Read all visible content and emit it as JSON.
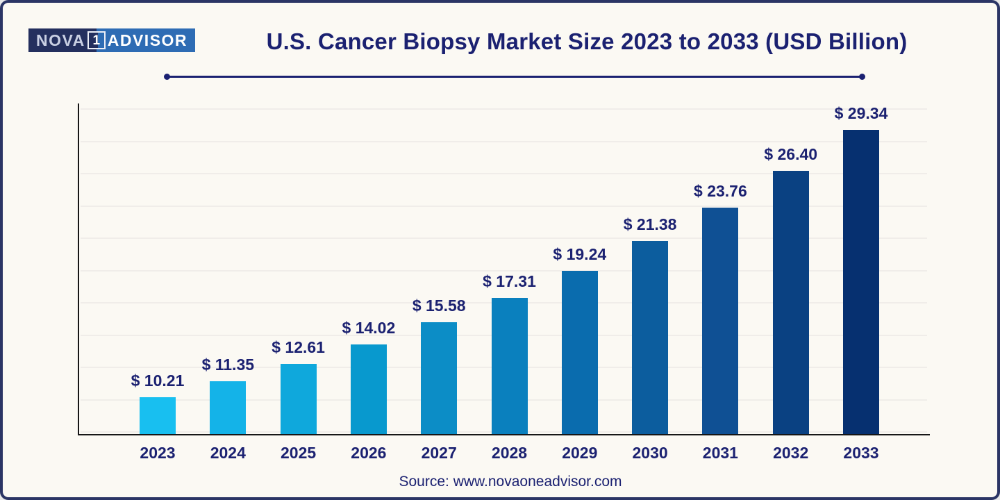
{
  "logo": {
    "nova": "NOVA",
    "one": "1",
    "advisor": "ADVISOR"
  },
  "header": {
    "title": "U.S. Cancer Biopsy Market Size 2023 to 2033 (USD Billion)"
  },
  "chart_data": {
    "type": "bar",
    "title": "U.S. Cancer Biopsy Market Size 2023 to 2033 (USD Billion)",
    "unit": "USD Billion",
    "categories": [
      "2023",
      "2024",
      "2025",
      "2026",
      "2027",
      "2028",
      "2029",
      "2030",
      "2031",
      "2032",
      "2033"
    ],
    "values": [
      10.21,
      11.35,
      12.61,
      14.02,
      15.58,
      17.31,
      19.24,
      21.38,
      23.76,
      26.4,
      29.34
    ],
    "value_labels": [
      "$ 10.21",
      "$ 11.35",
      "$ 12.61",
      "$ 14.02",
      "$ 15.58",
      "$ 17.31",
      "$ 19.24",
      "$ 21.38",
      "$ 23.76",
      "$ 26.40",
      "$ 29.34"
    ],
    "bar_colors": [
      "#18BFF0",
      "#14B3E8",
      "#0FA8DC",
      "#0899CE",
      "#0C8DC6",
      "#0A80BE",
      "#0A6CAE",
      "#0C5D9E",
      "#0F5094",
      "#0A4182",
      "#063070"
    ],
    "xlabel": "",
    "ylabel": "",
    "ylim": [
      7.6,
      31.2
    ],
    "grid": "horizontal",
    "legend": "none"
  },
  "footer": {
    "source": "Source: www.novaoneadvisor.com"
  },
  "colors": {
    "accent_navy": "#1B2171",
    "background": "#FBF9F3",
    "frame_border": "#2B3565",
    "gridline": "#F0EDE9",
    "axis": "#161616",
    "logo_dark": "#242F5E",
    "logo_blue": "#2E6CB4"
  }
}
